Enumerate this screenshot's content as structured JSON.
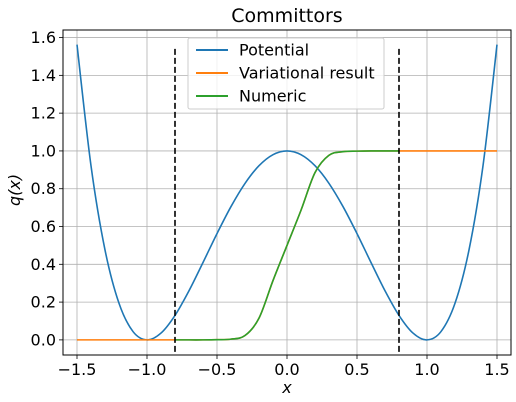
{
  "chart_data": {
    "type": "line",
    "title": "Committors",
    "xlabel": "x",
    "ylabel": "q(x)",
    "xlim": [
      -1.6,
      1.6
    ],
    "ylim": [
      -0.08,
      1.64
    ],
    "xticks": [
      -1.5,
      -1.0,
      -0.5,
      0.0,
      0.5,
      1.0,
      1.5
    ],
    "xtick_labels": [
      "−1.5",
      "−1.0",
      "−0.5",
      "0.0",
      "0.5",
      "1.0",
      "1.5"
    ],
    "yticks": [
      0.0,
      0.2,
      0.4,
      0.6,
      0.8,
      1.0,
      1.2,
      1.4,
      1.6
    ],
    "ytick_labels": [
      "0.0",
      "0.2",
      "0.4",
      "0.6",
      "0.8",
      "1.0",
      "1.2",
      "1.4",
      "1.6"
    ],
    "grid": true,
    "legend_position": "top-center",
    "series": [
      {
        "name": "Potential",
        "color": "#1f77b4",
        "x": [
          -1.5,
          -1.4,
          -1.3,
          -1.2,
          -1.1,
          -1.0,
          -0.9,
          -0.8,
          -0.7,
          -0.6,
          -0.5,
          -0.4,
          -0.3,
          -0.2,
          -0.1,
          0.0,
          0.1,
          0.2,
          0.3,
          0.4,
          0.5,
          0.6,
          0.7,
          0.8,
          0.9,
          1.0,
          1.1,
          1.2,
          1.3,
          1.4,
          1.5
        ],
        "y": [
          1.5625,
          0.9216,
          0.4761,
          0.1936,
          0.0441,
          0.0,
          0.0361,
          0.1296,
          0.2601,
          0.4096,
          0.5625,
          0.7056,
          0.8281,
          0.9216,
          0.9801,
          1.0,
          0.9801,
          0.9216,
          0.8281,
          0.7056,
          0.5625,
          0.4096,
          0.2601,
          0.1296,
          0.0361,
          0.0,
          0.0441,
          0.1936,
          0.4761,
          0.9216,
          1.5625
        ]
      },
      {
        "name": "Variational result",
        "color": "#ff7f0e",
        "x": [
          -1.5,
          -0.8,
          -0.7,
          -0.6,
          -0.5,
          -0.4,
          -0.3,
          -0.2,
          -0.1,
          0.0,
          0.1,
          0.2,
          0.3,
          0.4,
          0.5,
          0.6,
          0.7,
          0.8,
          1.5
        ],
        "y": [
          0.0,
          0.0,
          0.0,
          0.0,
          0.001,
          0.004,
          0.023,
          0.115,
          0.314,
          0.5,
          0.686,
          0.885,
          0.977,
          0.996,
          0.999,
          1.0,
          1.0,
          1.0,
          1.0
        ]
      },
      {
        "name": "Numeric",
        "color": "#2ca02c",
        "x": [
          -0.8,
          -0.7,
          -0.6,
          -0.5,
          -0.4,
          -0.3,
          -0.2,
          -0.1,
          0.0,
          0.1,
          0.2,
          0.3,
          0.4,
          0.5,
          0.6,
          0.7,
          0.8
        ],
        "y": [
          0.0,
          0.0,
          0.0,
          0.001,
          0.004,
          0.023,
          0.115,
          0.314,
          0.5,
          0.686,
          0.885,
          0.977,
          0.996,
          0.999,
          1.0,
          1.0,
          1.0
        ]
      }
    ],
    "vlines": [
      {
        "x": -0.8,
        "ymin": -0.07,
        "ymax": 1.54,
        "style": "dashed",
        "color": "#000000"
      },
      {
        "x": 0.8,
        "ymin": -0.07,
        "ymax": 1.54,
        "style": "dashed",
        "color": "#000000"
      }
    ]
  }
}
